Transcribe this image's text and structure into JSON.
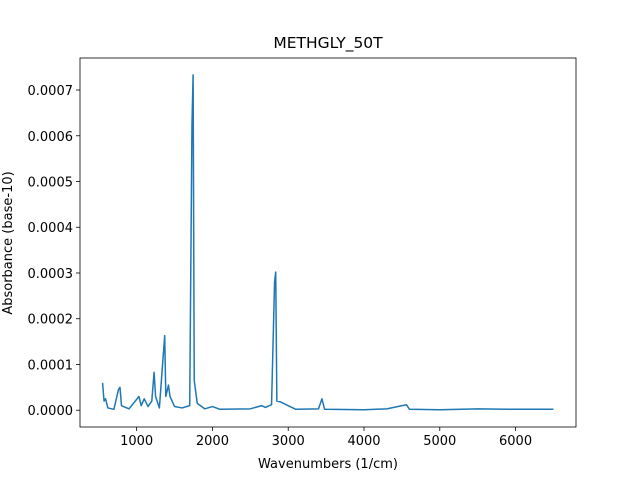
{
  "chart_data": {
    "type": "line",
    "title": "METHGLY_50T",
    "x_label": "Wavenumbers (1/cm)",
    "y_label": "Absorbance (base-10)",
    "color": "#1f77b4",
    "x": [
      550,
      570,
      590,
      620,
      700,
      760,
      780,
      800,
      900,
      1030,
      1060,
      1100,
      1150,
      1200,
      1230,
      1250,
      1300,
      1360,
      1370,
      1385,
      1420,
      1440,
      1500,
      1600,
      1700,
      1730,
      1745,
      1760,
      1800,
      1900,
      2000,
      2100,
      2500,
      2650,
      2700,
      2780,
      2820,
      2835,
      2850,
      2900,
      3000,
      3100,
      3400,
      3445,
      3480,
      4000,
      4300,
      4560,
      4600,
      5000,
      5500,
      6000,
      6500
    ],
    "values": [
      6e-05,
      2e-05,
      2.5e-05,
      5e-06,
      2e-06,
      4.5e-05,
      5e-05,
      1e-05,
      3e-06,
      3e-05,
      1e-05,
      2.5e-05,
      8e-06,
      2e-05,
      8.3e-05,
      3e-05,
      5e-06,
      0.00014,
      0.000163,
      3e-05,
      5.5e-05,
      3e-05,
      8e-06,
      5e-06,
      1e-05,
      0.000625,
      0.000733,
      6.5e-05,
      1.5e-05,
      3e-06,
      8e-06,
      2e-06,
      3e-06,
      1e-05,
      6e-06,
      1.2e-05,
      0.00028,
      0.000302,
      2e-05,
      1.8e-05,
      1e-05,
      2e-06,
      3e-06,
      2.5e-05,
      2e-06,
      1e-06,
      3e-06,
      1.2e-05,
      2e-06,
      1e-06,
      3e-06,
      2e-06,
      2e-06
    ],
    "xlim": [
      252.5,
      6797.5
    ],
    "xticks": [
      1000,
      2000,
      3000,
      4000,
      5000,
      6000
    ],
    "ylim": [
      -3.67e-05,
      0.00077
    ],
    "yticks": [
      {
        "value": 0,
        "label": "0.0000"
      },
      {
        "value": 0.0001,
        "label": "0.0001"
      },
      {
        "value": 0.0002,
        "label": "0.0002"
      },
      {
        "value": 0.0003,
        "label": "0.0003"
      },
      {
        "value": 0.0004,
        "label": "0.0004"
      },
      {
        "value": 0.0005,
        "label": "0.0005"
      },
      {
        "value": 0.0006,
        "label": "0.0006"
      },
      {
        "value": 0.0007,
        "label": "0.0007"
      }
    ]
  }
}
